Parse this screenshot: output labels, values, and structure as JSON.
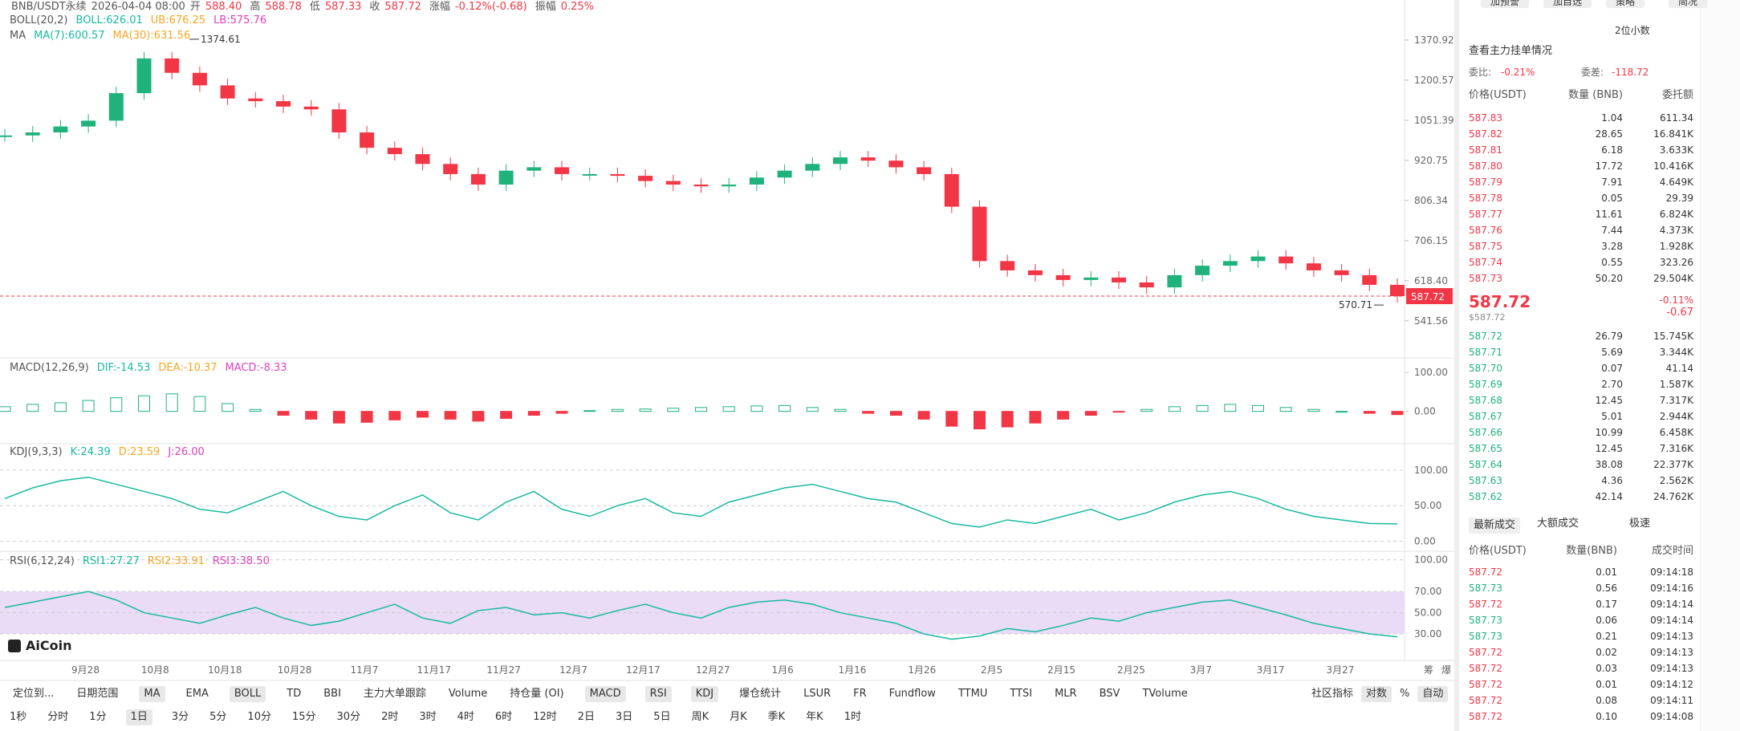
{
  "header": {
    "symbol": "BNB/USDT永续",
    "time": "2026-04-04 08:00",
    "fields": [
      {
        "label": "开",
        "value": "588.40"
      },
      {
        "label": "高",
        "value": "588.78"
      },
      {
        "label": "低",
        "value": "587.33"
      },
      {
        "label": "收",
        "value": "587.72"
      },
      {
        "label": "涨幅",
        "value": "-0.12%(-0.68)"
      },
      {
        "label": "振幅",
        "value": "0.25%"
      }
    ]
  },
  "price_chart": {
    "boll": {
      "name": "BOLL(20,2)",
      "items": [
        {
          "text": "BOLL:626.01",
          "color": "#17b9a0"
        },
        {
          "text": "UB:676.25",
          "color": "#f5a623"
        },
        {
          "text": "LB:575.76",
          "color": "#e040c0"
        }
      ]
    },
    "ma": {
      "name": "MA",
      "items": [
        {
          "text": "MA(7):600.57",
          "color": "#17b9a0"
        },
        {
          "text": "MA(30):631.56",
          "color": "#f5a623"
        }
      ]
    },
    "log_scale": true,
    "ylim": [
      483,
      1565
    ],
    "yticks": [
      {
        "value": 1370.92,
        "label": "1370.92"
      },
      {
        "value": 1200.57,
        "label": "1200.57"
      },
      {
        "value": 1051.39,
        "label": "1051.39"
      },
      {
        "value": 920.75,
        "label": "920.75"
      },
      {
        "value": 806.34,
        "label": "806.34"
      },
      {
        "value": 706.15,
        "label": "706.15"
      },
      {
        "value": 618.4,
        "label": "618.40"
      },
      {
        "value": 541.56,
        "label": "541.56"
      }
    ],
    "closes": [
      1000,
      1010,
      1030,
      1050,
      1150,
      1290,
      1230,
      1180,
      1130,
      1120,
      1100,
      1090,
      1010,
      960,
      940,
      910,
      880,
      850,
      890,
      900,
      880,
      880,
      875,
      860,
      850,
      845,
      850,
      870,
      890,
      910,
      930,
      920,
      900,
      880,
      790,
      660,
      640,
      630,
      620,
      625,
      615,
      605,
      630,
      650,
      660,
      670,
      655,
      640,
      630,
      610,
      587.72
    ],
    "up_color": "#1fb27a",
    "down_color": "#f23645",
    "high": 1374.61,
    "low": 570.71,
    "current": 587.72
  },
  "macd": {
    "name": "MACD(12,26,9)",
    "items": [
      {
        "text": "DIF:-14.53",
        "color": "#17b9a0"
      },
      {
        "text": "DEA:-10.37",
        "color": "#f5a623"
      },
      {
        "text": "MACD:-8.33",
        "color": "#e040c0"
      }
    ],
    "ylim": [
      -83,
      131
    ],
    "yticks": [
      {
        "value": 100,
        "label": "100.00"
      },
      {
        "value": 0,
        "label": "0.00"
      }
    ],
    "hist": [
      12,
      18,
      22,
      28,
      35,
      40,
      45,
      38,
      20,
      5,
      -10,
      -20,
      -30,
      -28,
      -22,
      -15,
      -20,
      -25,
      -18,
      -10,
      -5,
      2,
      5,
      6,
      8,
      10,
      12,
      14,
      15,
      10,
      5,
      -5,
      -10,
      -20,
      -38,
      -45,
      -40,
      -30,
      -20,
      -10,
      -2,
      5,
      12,
      15,
      18,
      15,
      10,
      5,
      0,
      -5,
      -8.33
    ]
  },
  "kdj": {
    "name": "KDJ(9,3,3)",
    "items": [
      {
        "text": "K:24.39",
        "color": "#17b9a0"
      },
      {
        "text": "D:23.59",
        "color": "#f5a623"
      },
      {
        "text": "J:26.00",
        "color": "#e040c0"
      }
    ],
    "ylim": [
      -14,
      137
    ],
    "yticks": [
      {
        "value": 100,
        "label": "100.00"
      },
      {
        "value": 50,
        "label": "50.00"
      },
      {
        "value": 0,
        "label": "0.00"
      }
    ],
    "k": [
      60,
      75,
      85,
      90,
      80,
      70,
      60,
      45,
      40,
      55,
      70,
      50,
      35,
      30,
      50,
      65,
      40,
      30,
      55,
      70,
      45,
      35,
      50,
      60,
      40,
      35,
      55,
      65,
      75,
      80,
      70,
      60,
      55,
      40,
      25,
      20,
      30,
      25,
      35,
      45,
      30,
      40,
      55,
      65,
      70,
      60,
      45,
      35,
      30,
      25,
      24.39
    ],
    "color": "#17b9a0"
  },
  "rsi": {
    "name": "RSI(6,12,24)",
    "items": [
      {
        "text": "RSI1:27.27",
        "color": "#17b9a0"
      },
      {
        "text": "RSI2:33.91",
        "color": "#f5a623"
      },
      {
        "text": "RSI3:38.50",
        "color": "#e040c0"
      }
    ],
    "ylim": [
      5,
      108
    ],
    "yticks": [
      {
        "value": 100,
        "label": "100.00"
      },
      {
        "value": 70,
        "label": "70.00"
      },
      {
        "value": 50,
        "label": "50.00"
      },
      {
        "value": 30,
        "label": "30.00"
      }
    ],
    "band": [
      30,
      70
    ],
    "rsi1": [
      55,
      60,
      65,
      70,
      62,
      50,
      45,
      40,
      48,
      55,
      45,
      38,
      42,
      50,
      58,
      45,
      40,
      52,
      55,
      48,
      50,
      45,
      52,
      58,
      50,
      45,
      55,
      60,
      62,
      58,
      50,
      45,
      40,
      30,
      25,
      28,
      35,
      32,
      38,
      45,
      42,
      50,
      55,
      60,
      62,
      55,
      48,
      40,
      35,
      30,
      27.27
    ],
    "color": "#17b9a0"
  },
  "dates": [
    "9月28",
    "10月8",
    "10月18",
    "10月28",
    "11月7",
    "11月17",
    "11月27",
    "12月7",
    "12月17",
    "12月27",
    "1月6",
    "1月16",
    "1月26",
    "2月5",
    "2月15",
    "2月25",
    "3月7",
    "3月17",
    "3月27"
  ],
  "axis_corner": [
    "筹",
    "爆"
  ],
  "logo": "AiCoin",
  "toolbar": {
    "row1": [
      {
        "text": "定位到..."
      },
      {
        "text": "日期范围"
      },
      {
        "text": "MA",
        "selected": true
      },
      {
        "text": "EMA"
      },
      {
        "text": "BOLL",
        "selected": true
      },
      {
        "text": "TD"
      },
      {
        "text": "BBI"
      },
      {
        "text": "主力大单跟踪"
      },
      {
        "text": "Volume"
      },
      {
        "text": "持仓量 (OI)"
      },
      {
        "text": "MACD",
        "selected": true
      },
      {
        "text": "RSI",
        "selected": true
      },
      {
        "text": "KDJ",
        "selected": true
      },
      {
        "text": "爆仓统计"
      },
      {
        "text": "LSUR"
      },
      {
        "text": "FR"
      },
      {
        "text": "Fundflow"
      },
      {
        "text": "TTMU"
      },
      {
        "text": "TTSI"
      },
      {
        "text": "MLR"
      },
      {
        "text": "BSV"
      },
      {
        "text": "TVolume"
      }
    ],
    "right": [
      {
        "text": "社区指标"
      },
      {
        "text": "对数",
        "selected": true
      },
      {
        "text": "%"
      },
      {
        "text": "自动",
        "selected": true
      }
    ],
    "row2": [
      {
        "text": "1秒"
      },
      {
        "text": "分时"
      },
      {
        "text": "1分"
      },
      {
        "text": "1日",
        "selected": true
      },
      {
        "text": "3分"
      },
      {
        "text": "5分"
      },
      {
        "text": "10分"
      },
      {
        "text": "15分"
      },
      {
        "text": "30分"
      },
      {
        "text": "2时"
      },
      {
        "text": "3时"
      },
      {
        "text": "4时"
      },
      {
        "text": "6时"
      },
      {
        "text": "12时"
      },
      {
        "text": "2日"
      },
      {
        "text": "3日"
      },
      {
        "text": "5日"
      },
      {
        "text": "周K"
      },
      {
        "text": "月K"
      },
      {
        "text": "季K"
      },
      {
        "text": "年K"
      },
      {
        "text": "1时"
      }
    ]
  },
  "side_panel": {
    "buttons": [
      "加预警",
      "加自选",
      "策略",
      "简况"
    ],
    "decimals": "2位小数",
    "depth_link": "查看主力挂单情况",
    "ratio_label": "委比:",
    "ratio": "-0.21%",
    "diff_label": "委差:",
    "diff": "-118.72",
    "book_headers": [
      "价格(USDT)",
      "数量 (BNB)",
      "委托额"
    ],
    "asks": [
      [
        "587.83",
        "1.04",
        "611.34"
      ],
      [
        "587.82",
        "28.65",
        "16.841K"
      ],
      [
        "587.81",
        "6.18",
        "3.633K"
      ],
      [
        "587.80",
        "17.72",
        "10.416K"
      ],
      [
        "587.79",
        "7.91",
        "4.649K"
      ],
      [
        "587.78",
        "0.05",
        "29.39"
      ],
      [
        "587.77",
        "11.61",
        "6.824K"
      ],
      [
        "587.76",
        "7.44",
        "4.373K"
      ],
      [
        "587.75",
        "3.28",
        "1.928K"
      ],
      [
        "587.74",
        "0.55",
        "323.26"
      ],
      [
        "587.73",
        "50.20",
        "29.504K"
      ]
    ],
    "last_price": "587.72",
    "last_usd": "$587.72",
    "change_pct": "-0.11%",
    "change": "-0.67",
    "bids": [
      [
        "587.72",
        "26.79",
        "15.745K"
      ],
      [
        "587.71",
        "5.69",
        "3.344K"
      ],
      [
        "587.70",
        "0.07",
        "41.14"
      ],
      [
        "587.69",
        "2.70",
        "1.587K"
      ],
      [
        "587.68",
        "12.45",
        "7.317K"
      ],
      [
        "587.67",
        "5.01",
        "2.944K"
      ],
      [
        "587.66",
        "10.99",
        "6.458K"
      ],
      [
        "587.65",
        "12.45",
        "7.316K"
      ],
      [
        "587.64",
        "38.08",
        "22.377K"
      ],
      [
        "587.63",
        "4.36",
        "2.562K"
      ],
      [
        "587.62",
        "42.14",
        "24.762K"
      ]
    ],
    "ask_color": "#f23645",
    "bid_color": "#1fb27a",
    "tabs": [
      "最新成交",
      "大额成交",
      "极速"
    ],
    "trade_headers": [
      "价格(USDT)",
      "数量(BNB)",
      "成交时间"
    ],
    "trades": [
      {
        "price": "587.72",
        "qty": "0.01",
        "time": "09:14:18",
        "color": "#f23645"
      },
      {
        "price": "587.73",
        "qty": "0.56",
        "time": "09:14:16",
        "color": "#1fb27a"
      },
      {
        "price": "587.72",
        "qty": "0.17",
        "time": "09:14:14",
        "color": "#f23645"
      },
      {
        "price": "587.73",
        "qty": "0.06",
        "time": "09:14:14",
        "color": "#1fb27a"
      },
      {
        "price": "587.73",
        "qty": "0.21",
        "time": "09:14:13",
        "color": "#1fb27a"
      },
      {
        "price": "587.72",
        "qty": "0.02",
        "time": "09:14:13",
        "color": "#f23645"
      },
      {
        "price": "587.72",
        "qty": "0.03",
        "time": "09:14:13",
        "color": "#f23645"
      },
      {
        "price": "587.72",
        "qty": "0.01",
        "time": "09:14:12",
        "color": "#f23645"
      },
      {
        "price": "587.72",
        "qty": "0.08",
        "time": "09:14:11",
        "color": "#f23645"
      },
      {
        "price": "587.72",
        "qty": "0.10",
        "time": "09:14:08",
        "color": "#f23645"
      }
    ]
  }
}
